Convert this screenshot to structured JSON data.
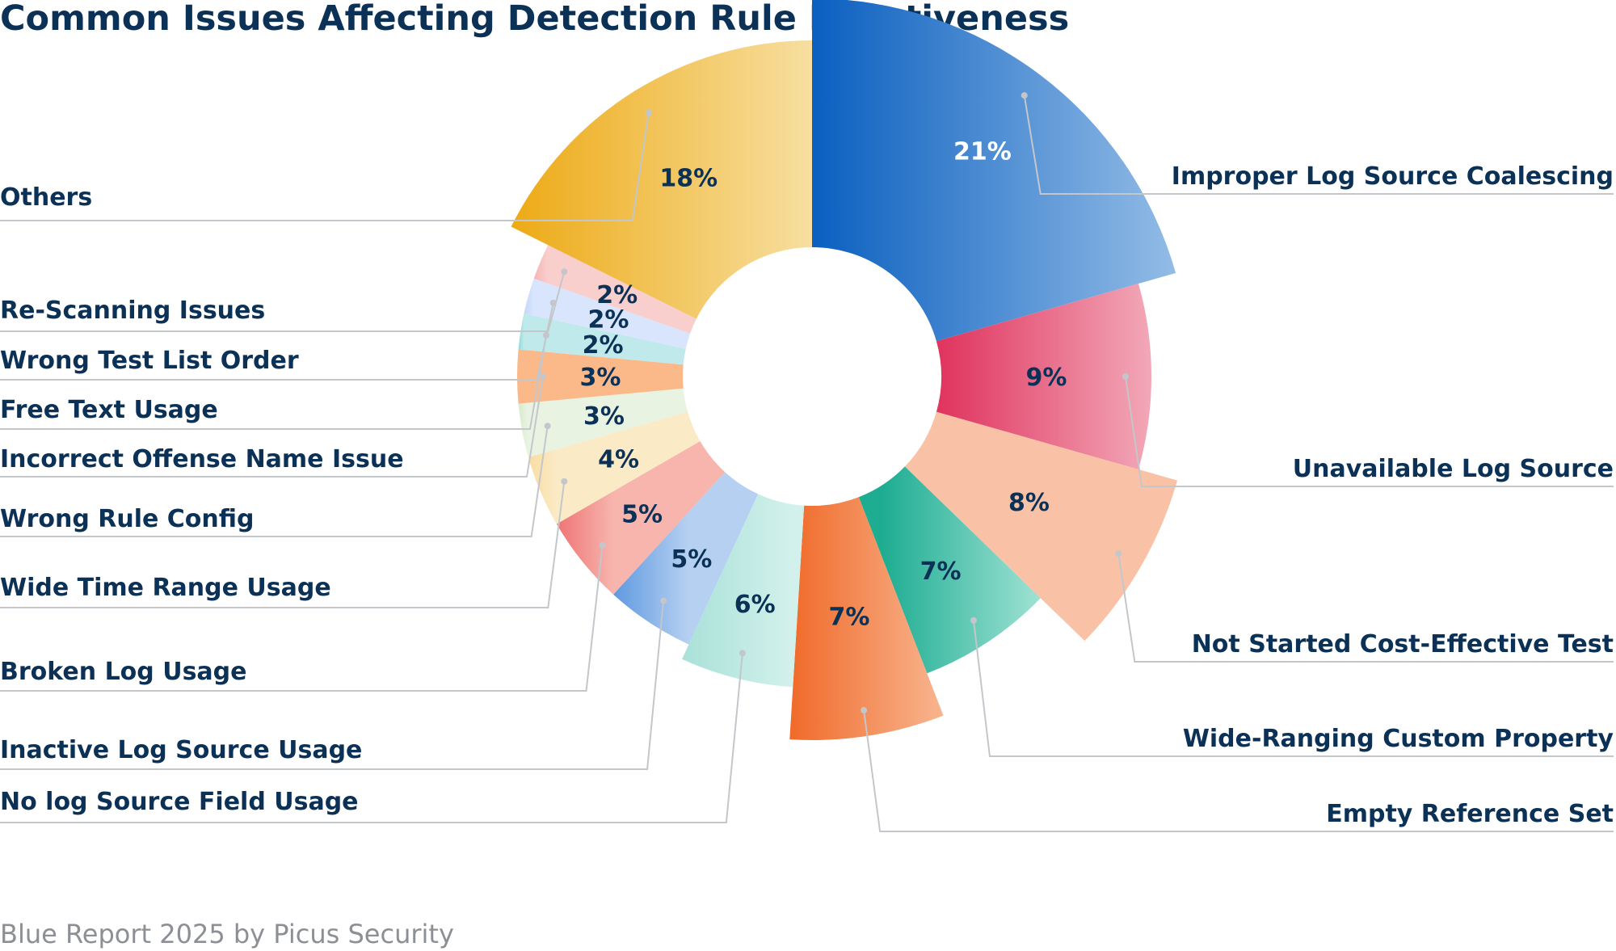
{
  "chart_data": {
    "type": "pie",
    "title": "Common Issues Affecting Detection Rule Effectiveness",
    "source": "Blue Report 2025 by Picus Security",
    "slices": [
      {
        "label": "Improper Log Source Coalescing",
        "value": 21,
        "value_label": "21%",
        "color": "#0a5fc0",
        "color_light": "#93bce6",
        "text_color": "#ffffff"
      },
      {
        "label": "Unavailable Log Source",
        "value": 9,
        "value_label": "9%",
        "color": "#e0355f",
        "color_light": "#f2a8b8",
        "text_color": "#0b3157"
      },
      {
        "label": "Not Started Cost-Effective Test",
        "value": 8,
        "value_label": "8%",
        "color": "#f9c2a6",
        "color_light": "#f9c2a6",
        "text_color": "#0b3157"
      },
      {
        "label": "Wide-Ranging Custom Property",
        "value": 7,
        "value_label": "7%",
        "color": "#1fad92",
        "color_light": "#9fe2d4",
        "text_color": "#0b3157"
      },
      {
        "label": "Empty Reference Set",
        "value": 7,
        "value_label": "7%",
        "color": "#f06a2a",
        "color_light": "#f8b58f",
        "text_color": "#0b3157"
      },
      {
        "label": "No log Source Field Usage",
        "value": 6,
        "value_label": "6%",
        "color": "#a9e1d8",
        "color_light": "#d3f1ec",
        "text_color": "#0b3157"
      },
      {
        "label": "Inactive Log Source Usage",
        "value": 5,
        "value_label": "5%",
        "color": "#5f9ae0",
        "color_light": "#b6d0f1",
        "text_color": "#0b3157"
      },
      {
        "label": "Broken Log Usage",
        "value": 5,
        "value_label": "5%",
        "color": "#ee7474",
        "color_light": "#f7b5ae",
        "text_color": "#0b3157"
      },
      {
        "label": "Wide Time Range Usage",
        "value": 4,
        "value_label": "4%",
        "color": "#f8dda2",
        "color_light": "#fbeac6",
        "text_color": "#0b3157"
      },
      {
        "label": "Wrong Rule Config",
        "value": 3,
        "value_label": "3%",
        "color": "#d9ebcf",
        "color_light": "#e9f3e2",
        "text_color": "#0b3157"
      },
      {
        "label": "Incorrect Offense Name Issue",
        "value": 3,
        "value_label": "3%",
        "color": "#f99a50",
        "color_light": "#fbb98a",
        "text_color": "#0b3157"
      },
      {
        "label": "Free Text Usage",
        "value": 2,
        "value_label": "2%",
        "color": "#8fd8da",
        "color_light": "#bfe9ea",
        "text_color": "#0b3157"
      },
      {
        "label": "Wrong Test List Order",
        "value": 2,
        "value_label": "2%",
        "color": "#c3d8fa",
        "color_light": "#d8e5fc",
        "text_color": "#0b3157"
      },
      {
        "label": "Re-Scanning Issues",
        "value": 2,
        "value_label": "2%",
        "color": "#f6b5b4",
        "color_light": "#f9cfcd",
        "text_color": "#0b3157"
      },
      {
        "label": "Others",
        "value": 18,
        "value_label": "18%",
        "color": "#edaa16",
        "color_light": "#f7dfa0",
        "text_color": "#0b3157"
      }
    ]
  }
}
